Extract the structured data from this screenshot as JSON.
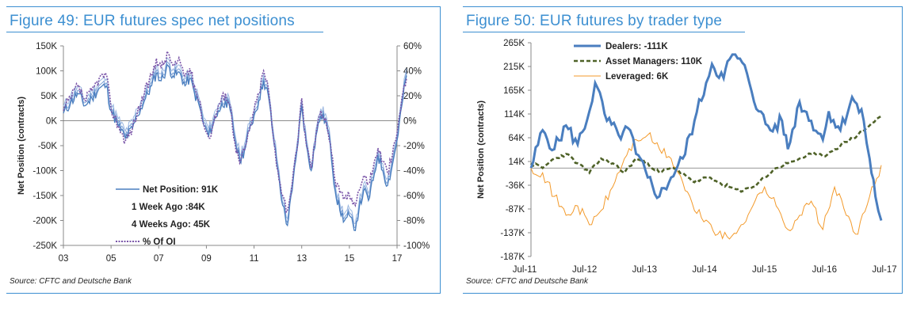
{
  "left_panel": {
    "title": "Figure 49: EUR futures spec net positions",
    "source": "Source: CFTC and Deutsche Bank"
  },
  "right_panel": {
    "title": "Figure 50: EUR futures by trader type",
    "source": "Source: CFTC and Deutsche Bank"
  },
  "chart_data": [
    {
      "type": "line",
      "title": "Figure 49: EUR futures spec net positions",
      "ylabel": "Net Position (contracts)",
      "y_ticks": [
        "150K",
        "100K",
        "50K",
        "0K",
        "-50K",
        "-100K",
        "-150K",
        "-200K",
        "-250K"
      ],
      "y2_ticks": [
        "60%",
        "40%",
        "20%",
        "0%",
        "-20%",
        "-40%",
        "-60%",
        "-80%",
        "-100%"
      ],
      "x_ticks": [
        "03",
        "05",
        "07",
        "09",
        "11",
        "13",
        "15",
        "17"
      ],
      "ylim": [
        -250,
        150
      ],
      "y2lim": [
        -100,
        60
      ],
      "xlim": [
        2003,
        2017
      ],
      "grid": false,
      "legend_position": "bottom-center",
      "legend": [
        "Net Position: 91K",
        "1 Week Ago :84K",
        "4 Weeks Ago: 45K",
        "% Of OI"
      ],
      "series": [
        {
          "name": "Net Position: 91K",
          "color": "#4a7ebf",
          "axis": "left",
          "points": [
            [
              2003.0,
              15
            ],
            [
              2003.3,
              35
            ],
            [
              2003.6,
              55
            ],
            [
              2003.9,
              30
            ],
            [
              2004.2,
              45
            ],
            [
              2004.5,
              65
            ],
            [
              2004.8,
              70
            ],
            [
              2005.0,
              20
            ],
            [
              2005.3,
              -10
            ],
            [
              2005.6,
              -35
            ],
            [
              2005.9,
              -15
            ],
            [
              2006.1,
              10
            ],
            [
              2006.4,
              40
            ],
            [
              2006.7,
              70
            ],
            [
              2006.9,
              95
            ],
            [
              2007.1,
              80
            ],
            [
              2007.4,
              110
            ],
            [
              2007.6,
              90
            ],
            [
              2007.9,
              95
            ],
            [
              2008.1,
              70
            ],
            [
              2008.3,
              85
            ],
            [
              2008.5,
              55
            ],
            [
              2008.7,
              30
            ],
            [
              2008.9,
              -10
            ],
            [
              2009.1,
              -30
            ],
            [
              2009.3,
              -5
            ],
            [
              2009.5,
              20
            ],
            [
              2009.8,
              40
            ],
            [
              2010.0,
              20
            ],
            [
              2010.2,
              -40
            ],
            [
              2010.4,
              -80
            ],
            [
              2010.6,
              -60
            ],
            [
              2010.8,
              -20
            ],
            [
              2011.0,
              10
            ],
            [
              2011.2,
              40
            ],
            [
              2011.4,
              80
            ],
            [
              2011.6,
              50
            ],
            [
              2011.8,
              -30
            ],
            [
              2012.0,
              -100
            ],
            [
              2012.2,
              -170
            ],
            [
              2012.4,
              -210
            ],
            [
              2012.6,
              -140
            ],
            [
              2012.8,
              -60
            ],
            [
              2013.0,
              30
            ],
            [
              2013.2,
              -50
            ],
            [
              2013.4,
              -100
            ],
            [
              2013.6,
              -30
            ],
            [
              2013.8,
              10
            ],
            [
              2014.0,
              0
            ],
            [
              2014.2,
              -50
            ],
            [
              2014.4,
              -140
            ],
            [
              2014.6,
              -180
            ],
            [
              2014.8,
              -200
            ],
            [
              2015.0,
              -190
            ],
            [
              2015.2,
              -220
            ],
            [
              2015.4,
              -180
            ],
            [
              2015.6,
              -140
            ],
            [
              2015.8,
              -160
            ],
            [
              2016.0,
              -120
            ],
            [
              2016.2,
              -70
            ],
            [
              2016.4,
              -100
            ],
            [
              2016.6,
              -130
            ],
            [
              2016.8,
              -90
            ],
            [
              2017.0,
              -40
            ],
            [
              2017.2,
              30
            ],
            [
              2017.4,
              91
            ]
          ]
        },
        {
          "name": "% Of OI",
          "color": "#7a55a8",
          "axis": "right",
          "points": [
            [
              2003.0,
              8
            ],
            [
              2003.3,
              18
            ],
            [
              2003.6,
              28
            ],
            [
              2003.9,
              16
            ],
            [
              2004.2,
              24
            ],
            [
              2004.5,
              34
            ],
            [
              2004.8,
              37
            ],
            [
              2005.0,
              10
            ],
            [
              2005.3,
              -4
            ],
            [
              2005.6,
              -16
            ],
            [
              2005.9,
              -6
            ],
            [
              2006.1,
              6
            ],
            [
              2006.4,
              22
            ],
            [
              2006.7,
              36
            ],
            [
              2006.9,
              50
            ],
            [
              2007.1,
              42
            ],
            [
              2007.4,
              54
            ],
            [
              2007.6,
              44
            ],
            [
              2007.9,
              47
            ],
            [
              2008.1,
              36
            ],
            [
              2008.3,
              42
            ],
            [
              2008.5,
              28
            ],
            [
              2008.7,
              16
            ],
            [
              2008.9,
              -4
            ],
            [
              2009.1,
              -14
            ],
            [
              2009.3,
              -2
            ],
            [
              2009.5,
              12
            ],
            [
              2009.8,
              22
            ],
            [
              2010.0,
              12
            ],
            [
              2010.2,
              -18
            ],
            [
              2010.4,
              -34
            ],
            [
              2010.6,
              -24
            ],
            [
              2010.8,
              -8
            ],
            [
              2011.0,
              8
            ],
            [
              2011.2,
              22
            ],
            [
              2011.4,
              40
            ],
            [
              2011.6,
              26
            ],
            [
              2011.8,
              -12
            ],
            [
              2012.0,
              -40
            ],
            [
              2012.2,
              -60
            ],
            [
              2012.4,
              -72
            ],
            [
              2012.6,
              -50
            ],
            [
              2012.8,
              -24
            ],
            [
              2013.0,
              18
            ],
            [
              2013.2,
              -20
            ],
            [
              2013.4,
              -38
            ],
            [
              2013.6,
              -10
            ],
            [
              2013.8,
              8
            ],
            [
              2014.0,
              2
            ],
            [
              2014.2,
              -18
            ],
            [
              2014.4,
              -48
            ],
            [
              2014.6,
              -58
            ],
            [
              2014.8,
              -62
            ],
            [
              2015.0,
              -60
            ],
            [
              2015.2,
              -66
            ],
            [
              2015.4,
              -56
            ],
            [
              2015.6,
              -44
            ],
            [
              2015.8,
              -50
            ],
            [
              2016.0,
              -38
            ],
            [
              2016.2,
              -22
            ],
            [
              2016.4,
              -32
            ],
            [
              2016.6,
              -42
            ],
            [
              2016.8,
              -28
            ],
            [
              2017.0,
              -10
            ],
            [
              2017.2,
              18
            ],
            [
              2017.4,
              34
            ]
          ]
        }
      ]
    },
    {
      "type": "line",
      "title": "Figure 50: EUR futures by trader type",
      "ylabel": "Net Position (contracts)",
      "y_ticks": [
        "265K",
        "215K",
        "165K",
        "114K",
        "64K",
        "14K",
        "-36K",
        "-87K",
        "-137K",
        "-187K"
      ],
      "x_ticks": [
        "Jul-11",
        "Jul-12",
        "Jul-13",
        "Jul-14",
        "Jul-15",
        "Jul-16",
        "Jul-17"
      ],
      "ylim": [
        -187,
        265
      ],
      "xlim": [
        2011.5,
        2017.5
      ],
      "grid": false,
      "legend_position": "top-left",
      "series": [
        {
          "name": "Dealers: -111K",
          "color": "#4a7ebf",
          "points": [
            [
              2011.5,
              0
            ],
            [
              2011.7,
              80
            ],
            [
              2011.9,
              40
            ],
            [
              2012.1,
              90
            ],
            [
              2012.3,
              50
            ],
            [
              2012.5,
              120
            ],
            [
              2012.6,
              180
            ],
            [
              2012.8,
              100
            ],
            [
              2013.0,
              70
            ],
            [
              2013.2,
              80
            ],
            [
              2013.3,
              30
            ],
            [
              2013.5,
              -20
            ],
            [
              2013.7,
              -60
            ],
            [
              2013.9,
              -20
            ],
            [
              2014.1,
              20
            ],
            [
              2014.3,
              100
            ],
            [
              2014.5,
              180
            ],
            [
              2014.6,
              220
            ],
            [
              2014.8,
              190
            ],
            [
              2014.9,
              230
            ],
            [
              2015.0,
              240
            ],
            [
              2015.2,
              200
            ],
            [
              2015.4,
              120
            ],
            [
              2015.6,
              80
            ],
            [
              2015.8,
              100
            ],
            [
              2015.9,
              40
            ],
            [
              2016.1,
              140
            ],
            [
              2016.3,
              100
            ],
            [
              2016.5,
              60
            ],
            [
              2016.6,
              120
            ],
            [
              2016.8,
              80
            ],
            [
              2017.0,
              150
            ],
            [
              2017.2,
              100
            ],
            [
              2017.3,
              20
            ],
            [
              2017.4,
              -60
            ],
            [
              2017.5,
              -111
            ]
          ]
        },
        {
          "name": "Asset Managers: 110K",
          "color": "#4f6228",
          "points": [
            [
              2011.5,
              10
            ],
            [
              2011.7,
              0
            ],
            [
              2011.9,
              20
            ],
            [
              2012.1,
              30
            ],
            [
              2012.3,
              10
            ],
            [
              2012.5,
              -10
            ],
            [
              2012.7,
              20
            ],
            [
              2012.9,
              10
            ],
            [
              2013.1,
              -10
            ],
            [
              2013.3,
              20
            ],
            [
              2013.5,
              10
            ],
            [
              2013.7,
              -10
            ],
            [
              2013.9,
              0
            ],
            [
              2014.1,
              -10
            ],
            [
              2014.3,
              -30
            ],
            [
              2014.5,
              -20
            ],
            [
              2014.7,
              -30
            ],
            [
              2014.9,
              -40
            ],
            [
              2015.1,
              -50
            ],
            [
              2015.3,
              -40
            ],
            [
              2015.5,
              -20
            ],
            [
              2015.7,
              0
            ],
            [
              2015.9,
              10
            ],
            [
              2016.1,
              20
            ],
            [
              2016.3,
              30
            ],
            [
              2016.5,
              25
            ],
            [
              2016.7,
              40
            ],
            [
              2016.9,
              55
            ],
            [
              2017.1,
              70
            ],
            [
              2017.3,
              90
            ],
            [
              2017.5,
              110
            ]
          ]
        },
        {
          "name": "Leveraged: 6K",
          "color": "#f39a2b",
          "points": [
            [
              2011.5,
              0
            ],
            [
              2011.7,
              -10
            ],
            [
              2011.9,
              -60
            ],
            [
              2012.1,
              -100
            ],
            [
              2012.3,
              -80
            ],
            [
              2012.5,
              -120
            ],
            [
              2012.7,
              -90
            ],
            [
              2012.9,
              -40
            ],
            [
              2013.1,
              20
            ],
            [
              2013.3,
              60
            ],
            [
              2013.5,
              70
            ],
            [
              2013.7,
              40
            ],
            [
              2013.9,
              20
            ],
            [
              2014.1,
              -30
            ],
            [
              2014.3,
              -90
            ],
            [
              2014.5,
              -110
            ],
            [
              2014.7,
              -140
            ],
            [
              2014.9,
              -150
            ],
            [
              2015.1,
              -120
            ],
            [
              2015.3,
              -80
            ],
            [
              2015.5,
              -40
            ],
            [
              2015.7,
              -80
            ],
            [
              2015.9,
              -130
            ],
            [
              2016.1,
              -100
            ],
            [
              2016.3,
              -70
            ],
            [
              2016.5,
              -130
            ],
            [
              2016.7,
              -40
            ],
            [
              2016.9,
              -100
            ],
            [
              2017.1,
              -140
            ],
            [
              2017.3,
              -60
            ],
            [
              2017.5,
              6
            ]
          ]
        }
      ]
    }
  ]
}
